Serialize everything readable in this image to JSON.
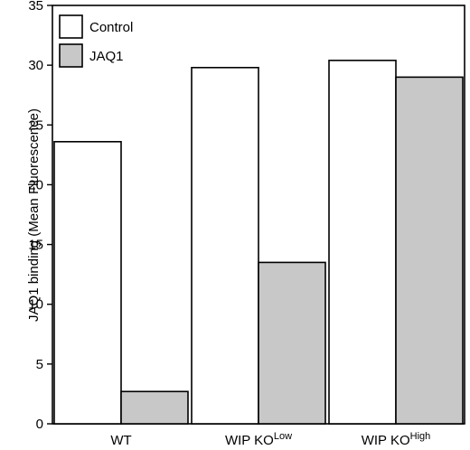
{
  "chart_data": {
    "type": "bar",
    "title": "",
    "xlabel": "",
    "ylabel": "JAQ1 binding (Mean Fluorescence)",
    "ylim": [
      0,
      35
    ],
    "yticks": [
      0,
      5,
      10,
      15,
      20,
      25,
      30,
      35
    ],
    "categories": [
      {
        "base": "WT",
        "sup": ""
      },
      {
        "base": "WIP KO",
        "sup": "Low"
      },
      {
        "base": "WIP KO",
        "sup": "High"
      }
    ],
    "series": [
      {
        "name": "Control",
        "color": "#ffffff",
        "values": [
          23.6,
          29.8,
          30.4
        ]
      },
      {
        "name": "JAQ1",
        "color": "#c8c8c8",
        "values": [
          2.7,
          13.5,
          29.0
        ]
      }
    ],
    "legend_position": "top-left",
    "grid": false
  }
}
